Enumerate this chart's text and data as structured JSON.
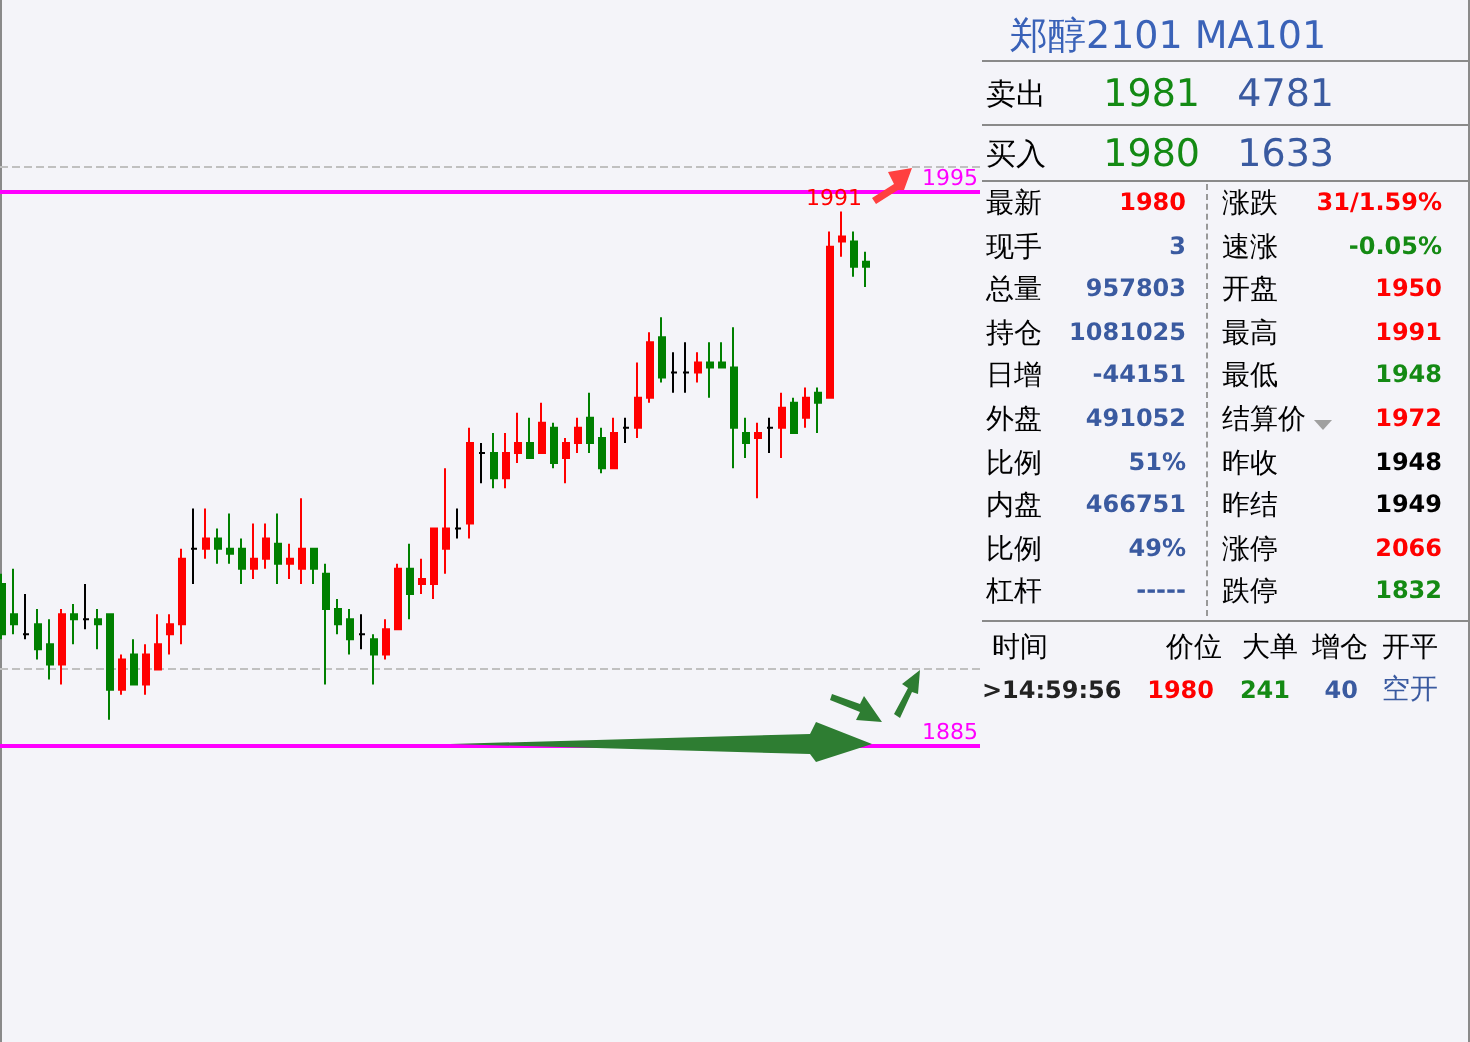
{
  "chart_data": [
    {
      "type": "candlestick",
      "categories": [
        null,
        null,
        null,
        null,
        null,
        null,
        null,
        null,
        null,
        null,
        null,
        null,
        null,
        null,
        null,
        null,
        null,
        null,
        null,
        null,
        null,
        null,
        null,
        null,
        null,
        null,
        null,
        null,
        null,
        null,
        null,
        null,
        null,
        null,
        null,
        null,
        null,
        null,
        null,
        null,
        null,
        null,
        null,
        null,
        null,
        null,
        null,
        null,
        null,
        null,
        null,
        null,
        null,
        null,
        null,
        null,
        null,
        null,
        null,
        null,
        null,
        null,
        null,
        null,
        null,
        null,
        null,
        null,
        null,
        null,
        null,
        null,
        null
      ],
      "ohlc": [
        [
          1917,
          1919,
          1906,
          1907
        ],
        [
          1911,
          1920,
          1907,
          1909
        ],
        [
          1907,
          1915,
          1906,
          1907
        ],
        [
          1909,
          1912,
          1902,
          1904
        ],
        [
          1905,
          1910,
          1898,
          1901
        ],
        [
          1901,
          1912,
          1897,
          1911
        ],
        [
          1911,
          1913,
          1905,
          1910
        ],
        [
          1910,
          1917,
          1908,
          1910
        ],
        [
          1910,
          1912,
          1904,
          1909
        ],
        [
          1911,
          1911,
          1890,
          1896
        ],
        [
          1896,
          1903,
          1895,
          1902
        ],
        [
          1903,
          1906,
          1897,
          1897
        ],
        [
          1897,
          1905,
          1895,
          1903
        ],
        [
          1900,
          1911,
          1900,
          1905
        ],
        [
          1907,
          1911,
          1903,
          1909
        ],
        [
          1909,
          1924,
          1905,
          1922
        ],
        [
          1924,
          1932,
          1917,
          1924
        ],
        [
          1924,
          1932,
          1922,
          1926
        ],
        [
          1926,
          1928,
          1921,
          1924
        ],
        [
          1924,
          1931,
          1921,
          1923
        ],
        [
          1924,
          1926,
          1917,
          1920
        ],
        [
          1920,
          1929,
          1918,
          1922
        ],
        [
          1922,
          1929,
          1920,
          1926
        ],
        [
          1925,
          1931,
          1917,
          1921
        ],
        [
          1921,
          1925,
          1918,
          1922
        ],
        [
          1920,
          1934,
          1917,
          1924
        ],
        [
          1924,
          1924,
          1917,
          1920
        ],
        [
          1919,
          1921,
          1897,
          1912
        ],
        [
          1912,
          1914,
          1907,
          1909
        ],
        [
          1910,
          1912,
          1903,
          1906
        ],
        [
          1907,
          1911,
          1904,
          1907
        ],
        [
          1906,
          1907,
          1897,
          1903
        ],
        [
          1903,
          1910,
          1902,
          1908
        ],
        [
          1908,
          1921,
          1908,
          1920
        ],
        [
          1920,
          1925,
          1910,
          1915
        ],
        [
          1917,
          1922,
          1915,
          1918
        ],
        [
          1917,
          1928,
          1914,
          1928
        ],
        [
          1924,
          1940,
          1919,
          1928
        ],
        [
          1928,
          1932,
          1926,
          1928
        ],
        [
          1929,
          1948,
          1926,
          1945
        ],
        [
          1943,
          1945,
          1937,
          1943
        ],
        [
          1943,
          1947,
          1936,
          1938
        ],
        [
          1938,
          1947,
          1936,
          1943
        ],
        [
          1943,
          1951,
          1941,
          1945
        ],
        [
          1945,
          1950,
          1942,
          1942
        ],
        [
          1943,
          1953,
          1943,
          1949
        ],
        [
          1948,
          1949,
          1940,
          1941
        ],
        [
          1942,
          1946,
          1937,
          1945
        ],
        [
          1945,
          1950,
          1943,
          1948
        ],
        [
          1950,
          1955,
          1943,
          1945
        ],
        [
          1946,
          1948,
          1939,
          1940
        ],
        [
          1940,
          1950,
          1940,
          1947
        ],
        [
          1948,
          1950,
          1945,
          1948
        ],
        [
          1948,
          1961,
          1946,
          1954
        ],
        [
          1954,
          1967,
          1953,
          1965
        ],
        [
          1966,
          1970,
          1957,
          1958
        ],
        [
          1959,
          1963,
          1955,
          1959
        ],
        [
          1959,
          1965,
          1955,
          1959
        ],
        [
          1959,
          1963,
          1957,
          1961
        ],
        [
          1961,
          1965,
          1954,
          1960
        ],
        [
          1961,
          1965,
          1960,
          1960
        ],
        [
          1960,
          1968,
          1940,
          1948
        ],
        [
          1947,
          1950,
          1942,
          1945
        ],
        [
          1946,
          1949,
          1934,
          1947
        ],
        [
          1948,
          1950,
          1943,
          1948
        ],
        [
          1948,
          1955,
          1942,
          1952
        ],
        [
          1953,
          1954,
          1947,
          1947
        ],
        [
          1950,
          1956,
          1948,
          1954
        ],
        [
          1955,
          1956,
          1947,
          1953
        ],
        [
          1954,
          1987,
          1954,
          1984
        ],
        [
          1985,
          1991,
          1982,
          1986
        ],
        [
          1985,
          1987,
          1978,
          1980
        ],
        [
          1981,
          1983,
          1976,
          1980
        ]
      ],
      "ylim": [
        1826,
        2033
      ],
      "yticks": [
        1885,
        1995
      ],
      "tick_labels": "y",
      "ref_lines": [
        {
          "axis": "y",
          "value": 1995,
          "label": null,
          "color": "#ff00ff",
          "line_style": "solid"
        },
        {
          "axis": "y",
          "value": 1885,
          "label": null,
          "color": "#ff00ff",
          "line_style": "solid"
        },
        {
          "axis": "y",
          "value": 2000,
          "label": null,
          "color": "#c0c0c0",
          "line_style": "dashed"
        },
        {
          "axis": "y",
          "value": 1900,
          "label": null,
          "color": "#c0c0c0",
          "line_style": "dashed"
        }
      ],
      "annotations": [
        "1991"
      ]
    },
    {
      "type": "other",
      "title": "郑醇2101  MA101",
      "annotations": [
        "卖出",
        "1981",
        "4781",
        "买入",
        "1980",
        "1633",
        "最新",
        "1980",
        "涨跌",
        "31/1.59%",
        "现手",
        "3",
        "速涨",
        "-0.05%",
        "总量",
        "957803",
        "开盘",
        "1950",
        "持仓",
        "1081025",
        "最高",
        "1991",
        "日增",
        "-44151",
        "最低",
        "1948",
        "外盘",
        "491052",
        "结算价",
        "1972",
        "比例",
        "51%",
        "昨收",
        "1948",
        "内盘",
        "466751",
        "昨结",
        "1949",
        "比例",
        "49%",
        "涨停",
        "2066",
        "杠杆",
        "-----",
        "跌停",
        "1832",
        "时间",
        "价位",
        "大单",
        "增仓",
        "开平",
        ">14:59:56",
        "1980",
        "241",
        "40",
        "空开"
      ]
    }
  ]
}
